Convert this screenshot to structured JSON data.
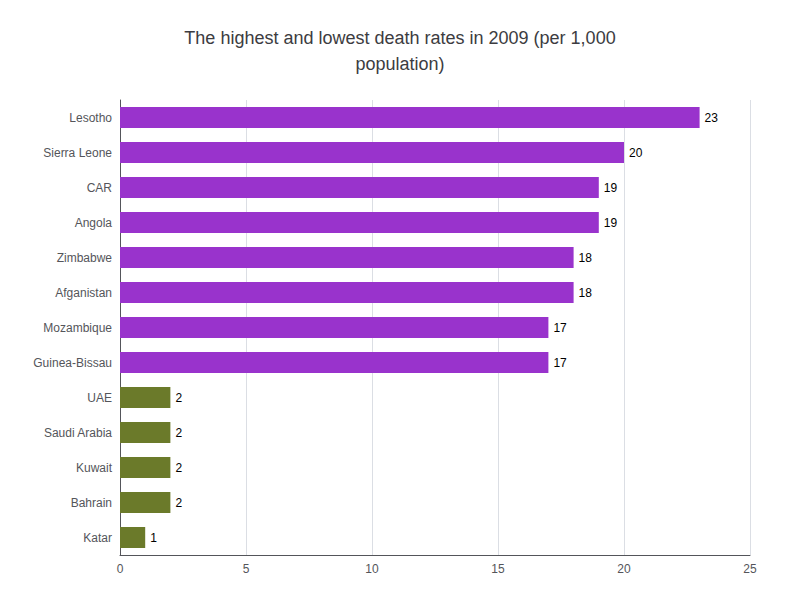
{
  "chart_data": {
    "type": "bar",
    "orientation": "horizontal",
    "title": "The highest and lowest death rates in 2009 (per 1,000\npopulation)",
    "categories": [
      "Lesotho",
      "Sierra Leone",
      "CAR",
      "Angola",
      "Zimbabwe",
      "Afganistan",
      "Mozambique",
      "Guinea-Bissau",
      "UAE",
      "Saudi Arabia",
      "Kuwait",
      "Bahrain",
      "Katar"
    ],
    "values": [
      23,
      20,
      19,
      19,
      18,
      18,
      17,
      17,
      2,
      2,
      2,
      2,
      1
    ],
    "colors": [
      "#9933CC",
      "#9933CC",
      "#9933CC",
      "#9933CC",
      "#9933CC",
      "#9933CC",
      "#9933CC",
      "#9933CC",
      "#6B7A2A",
      "#6B7A2A",
      "#6B7A2A",
      "#6B7A2A",
      "#6B7A2A"
    ],
    "xlim": [
      0,
      25
    ],
    "xticks": [
      0,
      5,
      10,
      15,
      20,
      25
    ],
    "grid": true,
    "data_labels": true
  }
}
